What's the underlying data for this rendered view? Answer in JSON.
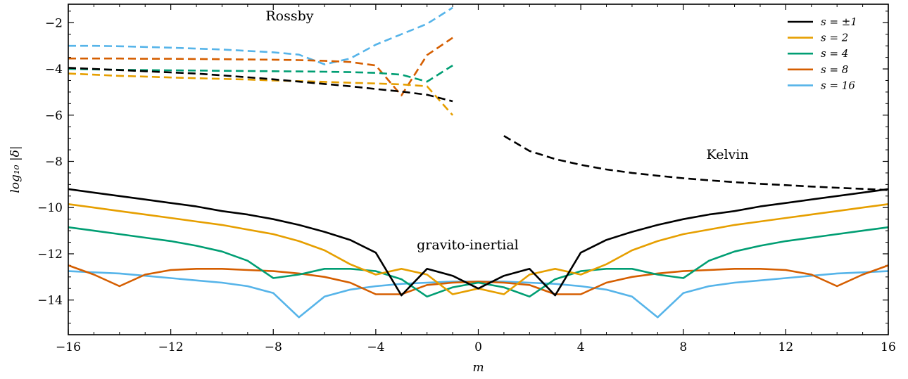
{
  "chart_data": {
    "type": "line",
    "xlabel": "m",
    "ylabel": "log₁₀ |δ|",
    "xlim": [
      -16,
      16
    ],
    "ylim": [
      -15.5,
      -1.2
    ],
    "xticks": [
      -16,
      -12,
      -8,
      -4,
      0,
      4,
      8,
      12,
      16
    ],
    "xtick_labels": [
      "−16",
      "−12",
      "−8",
      "−4",
      "0",
      "4",
      "8",
      "12",
      "16"
    ],
    "yticks": [
      -14,
      -12,
      -10,
      -8,
      -6,
      -4,
      -2
    ],
    "ytick_labels": [
      "−14",
      "−12",
      "−10",
      "−8",
      "−6",
      "−4",
      "−2"
    ],
    "grid": false,
    "legend_position": "top-right",
    "annotations": [
      {
        "text": "Rossby",
        "x": -8.3,
        "y": -1.9
      },
      {
        "text": "Kelvin",
        "x": 8.9,
        "y": -7.9
      },
      {
        "text": "gravito-inertial",
        "x": -2.4,
        "y": -11.8
      }
    ],
    "series": [
      {
        "name": "s = ±1",
        "color": "#000000",
        "gravito_inertial": {
          "x": [
            -16,
            -15,
            -14,
            -13,
            -12,
            -11,
            -10,
            -9,
            -8,
            -7,
            -6,
            -5,
            -4,
            -3,
            -2,
            -1,
            0,
            1,
            2,
            3,
            4,
            5,
            6,
            7,
            8,
            9,
            10,
            11,
            12,
            13,
            14,
            15,
            16
          ],
          "y": [
            -9.2,
            -9.35,
            -9.5,
            -9.65,
            -9.8,
            -9.95,
            -10.15,
            -10.3,
            -10.5,
            -10.75,
            -11.05,
            -11.4,
            -11.95,
            -13.8,
            -12.65,
            -12.95,
            -13.5,
            -12.95,
            -12.65,
            -13.8,
            -11.95,
            -11.4,
            -11.05,
            -10.75,
            -10.5,
            -10.3,
            -10.15,
            -9.95,
            -9.8,
            -9.65,
            -9.5,
            -9.35,
            -9.2
          ]
        },
        "rossby": {
          "x": [
            -16,
            -15,
            -14,
            -13,
            -12,
            -11,
            -10,
            -9,
            -8,
            -7,
            -6,
            -5,
            -4,
            -3,
            -2,
            -1
          ],
          "y": [
            -3.95,
            -4.0,
            -4.05,
            -4.1,
            -4.15,
            -4.2,
            -4.28,
            -4.36,
            -4.45,
            -4.55,
            -4.65,
            -4.75,
            -4.87,
            -4.98,
            -5.12,
            -5.4
          ]
        },
        "kelvin": {
          "x": [
            1,
            2,
            3,
            4,
            5,
            6,
            7,
            8,
            9,
            10,
            11,
            12,
            13,
            14,
            15,
            16
          ],
          "y": [
            -6.9,
            -7.55,
            -7.9,
            -8.15,
            -8.35,
            -8.5,
            -8.62,
            -8.73,
            -8.82,
            -8.9,
            -8.97,
            -9.03,
            -9.09,
            -9.14,
            -9.19,
            -9.24
          ]
        }
      },
      {
        "name": "s = 2",
        "color": "#E69F00",
        "gravito_inertial": {
          "x": [
            -16,
            -15,
            -14,
            -13,
            -12,
            -11,
            -10,
            -9,
            -8,
            -7,
            -6,
            -5,
            -4,
            -3,
            -2,
            -1,
            0,
            1,
            2,
            3,
            4,
            5,
            6,
            7,
            8,
            9,
            10,
            11,
            12,
            13,
            14,
            15,
            16
          ],
          "y": [
            -9.85,
            -10.0,
            -10.15,
            -10.3,
            -10.45,
            -10.6,
            -10.75,
            -10.95,
            -11.15,
            -11.45,
            -11.85,
            -12.45,
            -12.9,
            -12.65,
            -12.9,
            -13.75,
            -13.5,
            -13.75,
            -12.9,
            -12.65,
            -12.9,
            -12.45,
            -11.85,
            -11.45,
            -11.15,
            -10.95,
            -10.75,
            -10.6,
            -10.45,
            -10.3,
            -10.15,
            -10.0,
            -9.85
          ]
        },
        "rossby": {
          "x": [
            -16,
            -15,
            -14,
            -13,
            -12,
            -11,
            -10,
            -9,
            -8,
            -7,
            -6,
            -5,
            -4,
            -3,
            -2,
            -1
          ],
          "y": [
            -4.2,
            -4.25,
            -4.3,
            -4.33,
            -4.37,
            -4.4,
            -4.43,
            -4.46,
            -4.5,
            -4.53,
            -4.56,
            -4.6,
            -4.63,
            -4.67,
            -4.75,
            -6.0
          ]
        }
      },
      {
        "name": "s = 4",
        "color": "#009E73",
        "gravito_inertial": {
          "x": [
            -16,
            -15,
            -14,
            -13,
            -12,
            -11,
            -10,
            -9,
            -8,
            -7,
            -6,
            -5,
            -4,
            -3,
            -2,
            -1,
            0,
            1,
            2,
            3,
            4,
            5,
            6,
            7,
            8,
            9,
            10,
            11,
            12,
            13,
            14,
            15,
            16
          ],
          "y": [
            -10.85,
            -11.0,
            -11.15,
            -11.3,
            -11.45,
            -11.65,
            -11.9,
            -12.3,
            -13.05,
            -12.9,
            -12.65,
            -12.65,
            -12.75,
            -13.1,
            -13.85,
            -13.45,
            -13.25,
            -13.45,
            -13.85,
            -13.1,
            -12.75,
            -12.65,
            -12.65,
            -12.9,
            -13.05,
            -12.3,
            -11.9,
            -11.65,
            -11.45,
            -11.3,
            -11.15,
            -11.0,
            -10.85
          ]
        },
        "rossby": {
          "x": [
            -16,
            -15,
            -14,
            -13,
            -12,
            -11,
            -10,
            -9,
            -8,
            -7,
            -6,
            -5,
            -4,
            -3,
            -2,
            -1
          ],
          "y": [
            -4.0,
            -4.02,
            -4.04,
            -4.05,
            -4.06,
            -4.07,
            -4.08,
            -4.09,
            -4.1,
            -4.11,
            -4.12,
            -4.14,
            -4.17,
            -4.25,
            -4.55,
            -3.85
          ]
        }
      },
      {
        "name": "s = 8",
        "color": "#D55E00",
        "gravito_inertial": {
          "x": [
            -16,
            -15,
            -14,
            -13,
            -12,
            -11,
            -10,
            -9,
            -8,
            -7,
            -6,
            -5,
            -4,
            -3,
            -2,
            -1,
            0,
            1,
            2,
            3,
            4,
            5,
            6,
            7,
            8,
            9,
            10,
            11,
            12,
            13,
            14,
            15,
            16
          ],
          "y": [
            -12.5,
            -12.9,
            -13.4,
            -12.9,
            -12.7,
            -12.65,
            -12.65,
            -12.7,
            -12.75,
            -12.85,
            -13.0,
            -13.25,
            -13.75,
            -13.75,
            -13.35,
            -13.25,
            -13.2,
            -13.25,
            -13.35,
            -13.75,
            -13.75,
            -13.25,
            -13.0,
            -12.85,
            -12.75,
            -12.7,
            -12.65,
            -12.65,
            -12.7,
            -12.9,
            -13.4,
            -12.9,
            -12.5
          ]
        },
        "rossby": {
          "x": [
            -16,
            -15,
            -14,
            -13,
            -12,
            -11,
            -10,
            -9,
            -8,
            -7,
            -6,
            -5,
            -4,
            -3,
            -2,
            -1
          ],
          "y": [
            -3.55,
            -3.55,
            -3.55,
            -3.56,
            -3.56,
            -3.57,
            -3.58,
            -3.59,
            -3.6,
            -3.62,
            -3.65,
            -3.7,
            -3.85,
            -5.15,
            -3.4,
            -2.65
          ]
        }
      },
      {
        "name": "s = 16",
        "color": "#56B4E9",
        "gravito_inertial": {
          "x": [
            -16,
            -15,
            -14,
            -13,
            -12,
            -11,
            -10,
            -9,
            -8,
            -7,
            -6,
            -5,
            -4,
            -3,
            -2,
            -1,
            0,
            1,
            2,
            3,
            4,
            5,
            6,
            7,
            8,
            9,
            10,
            11,
            12,
            13,
            14,
            15,
            16
          ],
          "y": [
            -12.75,
            -12.8,
            -12.85,
            -12.95,
            -13.05,
            -13.15,
            -13.25,
            -13.4,
            -13.7,
            -14.75,
            -13.85,
            -13.55,
            -13.4,
            -13.3,
            -13.25,
            -13.2,
            -13.2,
            -13.2,
            -13.25,
            -13.3,
            -13.4,
            -13.55,
            -13.85,
            -14.75,
            -13.7,
            -13.4,
            -13.25,
            -13.15,
            -13.05,
            -12.95,
            -12.85,
            -12.8,
            -12.75
          ]
        },
        "rossby": {
          "x": [
            -16,
            -15,
            -14,
            -13,
            -12,
            -11,
            -10,
            -9,
            -8,
            -7,
            -6,
            -5,
            -4,
            -3,
            -2,
            -1
          ],
          "y": [
            -3.0,
            -3.0,
            -3.02,
            -3.05,
            -3.08,
            -3.12,
            -3.16,
            -3.22,
            -3.28,
            -3.38,
            -3.8,
            -3.55,
            -2.95,
            -2.5,
            -2.05,
            -1.35
          ]
        }
      }
    ]
  }
}
